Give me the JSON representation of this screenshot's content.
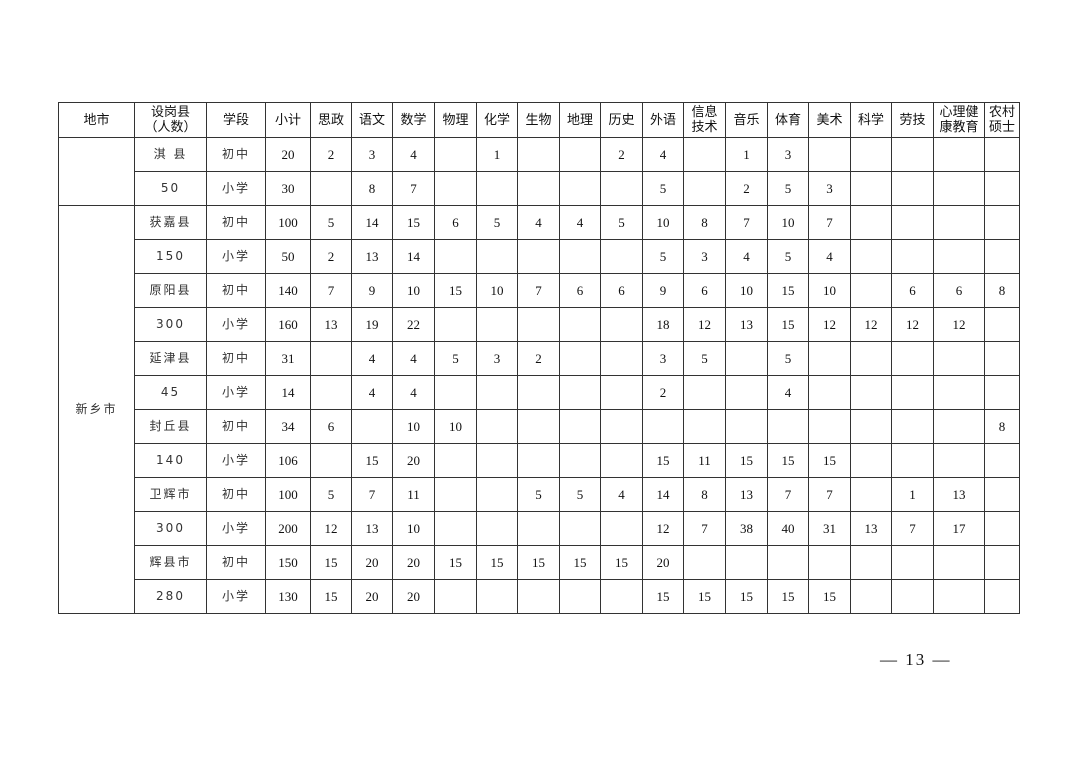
{
  "table": {
    "headers": [
      "地市",
      "设岗县（人数）",
      "学段",
      "小计",
      "思政",
      "语文",
      "数学",
      "物理",
      "化学",
      "生物",
      "地理",
      "历史",
      "外语",
      "信息技术",
      "音乐",
      "体育",
      "美术",
      "科学",
      "劳技",
      "心理健康教育",
      "农村硕士"
    ],
    "groups": [
      {
        "city": "",
        "rows": [
          [
            "淇 县",
            "初中",
            "20",
            "2",
            "3",
            "4",
            "",
            "1",
            "",
            "",
            "2",
            "4",
            "",
            "1",
            "3",
            "",
            "",
            "",
            "",
            ""
          ],
          [
            "50",
            "小学",
            "30",
            "",
            "8",
            "7",
            "",
            "",
            "",
            "",
            "",
            "5",
            "",
            "2",
            "5",
            "3",
            "",
            "",
            "",
            ""
          ]
        ]
      },
      {
        "city": "新乡市",
        "rows": [
          [
            "获嘉县",
            "初中",
            "100",
            "5",
            "14",
            "15",
            "6",
            "5",
            "4",
            "4",
            "5",
            "10",
            "8",
            "7",
            "10",
            "7",
            "",
            "",
            "",
            ""
          ],
          [
            "150",
            "小学",
            "50",
            "2",
            "13",
            "14",
            "",
            "",
            "",
            "",
            "",
            "5",
            "3",
            "4",
            "5",
            "4",
            "",
            "",
            "",
            ""
          ],
          [
            "原阳县",
            "初中",
            "140",
            "7",
            "9",
            "10",
            "15",
            "10",
            "7",
            "6",
            "6",
            "9",
            "6",
            "10",
            "15",
            "10",
            "",
            "6",
            "6",
            "8"
          ],
          [
            "300",
            "小学",
            "160",
            "13",
            "19",
            "22",
            "",
            "",
            "",
            "",
            "",
            "18",
            "12",
            "13",
            "15",
            "12",
            "12",
            "12",
            "12",
            ""
          ],
          [
            "延津县",
            "初中",
            "31",
            "",
            "4",
            "4",
            "5",
            "3",
            "2",
            "",
            "",
            "3",
            "5",
            "",
            "5",
            "",
            "",
            "",
            "",
            ""
          ],
          [
            "45",
            "小学",
            "14",
            "",
            "4",
            "4",
            "",
            "",
            "",
            "",
            "",
            "2",
            "",
            "",
            "4",
            "",
            "",
            "",
            "",
            ""
          ],
          [
            "封丘县",
            "初中",
            "34",
            "6",
            "",
            "10",
            "10",
            "",
            "",
            "",
            "",
            "",
            "",
            "",
            "",
            "",
            "",
            "",
            "",
            "8"
          ],
          [
            "140",
            "小学",
            "106",
            "",
            "15",
            "20",
            "",
            "",
            "",
            "",
            "",
            "15",
            "11",
            "15",
            "15",
            "15",
            "",
            "",
            "",
            ""
          ],
          [
            "卫辉市",
            "初中",
            "100",
            "5",
            "7",
            "11",
            "",
            "",
            "5",
            "5",
            "4",
            "14",
            "8",
            "13",
            "7",
            "7",
            "",
            "1",
            "13",
            ""
          ],
          [
            "300",
            "小学",
            "200",
            "12",
            "13",
            "10",
            "",
            "",
            "",
            "",
            "",
            "12",
            "7",
            "38",
            "40",
            "31",
            "13",
            "7",
            "17",
            ""
          ],
          [
            "辉县市",
            "初中",
            "150",
            "15",
            "20",
            "20",
            "15",
            "15",
            "15",
            "15",
            "15",
            "20",
            "",
            "",
            "",
            "",
            "",
            "",
            "",
            ""
          ],
          [
            "280",
            "小学",
            "130",
            "15",
            "20",
            "20",
            "",
            "",
            "",
            "",
            "",
            "15",
            "15",
            "15",
            "15",
            "15",
            "",
            "",
            "",
            ""
          ]
        ]
      }
    ]
  },
  "page_number": "— 13 —"
}
